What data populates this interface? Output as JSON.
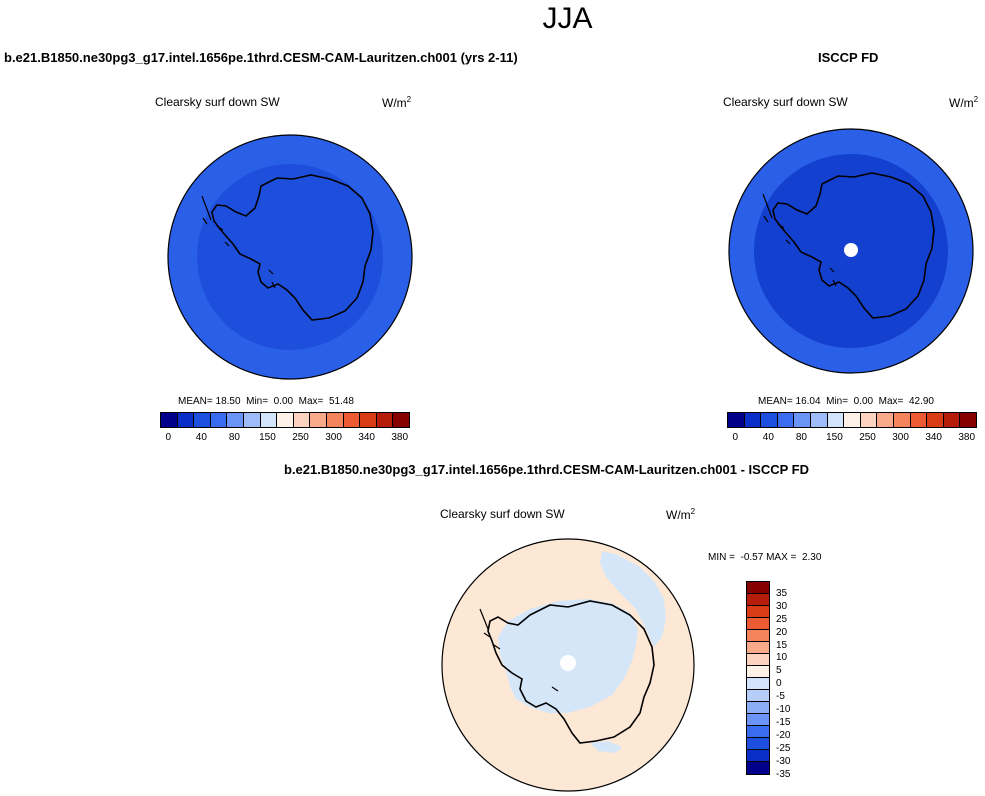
{
  "figure": {
    "season": "JJA"
  },
  "panels": [
    {
      "id": "model",
      "case_title": "b.e21.B1850.ne30pg3_g17.intel.1656pe.1thrd.CESM-CAM-Lauritzen.ch001 (yrs 2-11)",
      "variable": "Clearsky surf down SW",
      "units": "W/m",
      "units_exp": "2",
      "stats": {
        "mean_label": "MEAN=",
        "mean": "18.50",
        "min_label": "Min=",
        "min": "0.00",
        "max_label": "Max=",
        "max": "51.48"
      }
    },
    {
      "id": "obs",
      "case_title": "ISCCP FD",
      "variable": "Clearsky surf down SW",
      "units": "W/m",
      "units_exp": "2",
      "stats": {
        "mean_label": "MEAN=",
        "mean": "16.04",
        "min_label": "Min=",
        "min": "0.00",
        "max_label": "Max=",
        "max": "42.90"
      }
    },
    {
      "id": "diff",
      "case_title": "b.e21.B1850.ne30pg3_g17.intel.1656pe.1thrd.CESM-CAM-Lauritzen.ch001 - ISCCP FD",
      "variable": "Clearsky surf down SW",
      "units": "W/m",
      "units_exp": "2",
      "stats": {
        "min_label": "MIN =",
        "min": "-0.57",
        "max_label": "MAX =",
        "max": "2.30"
      }
    }
  ],
  "colorbars": {
    "absolute": {
      "colors": [
        "#00008b",
        "#0a2fc8",
        "#1e50e0",
        "#3a6cf0",
        "#6a94f5",
        "#9ebcf8",
        "#d2e3fb",
        "#fdf1e8",
        "#fbd3be",
        "#f9aa8a",
        "#f5845c",
        "#ed5b34",
        "#d93b17",
        "#b51d0a",
        "#850000"
      ],
      "labels": [
        "0",
        "40",
        "80",
        "150",
        "250",
        "300",
        "340",
        "380"
      ]
    },
    "difference": {
      "colors": [
        "#850000",
        "#b51d0a",
        "#d93b17",
        "#ed5b34",
        "#f5845c",
        "#f9aa8a",
        "#fbd3be",
        "#fdf1e8",
        "#d2e3fb",
        "#b6cef9",
        "#8caef6",
        "#6a94f5",
        "#3a6cf0",
        "#1e50e0",
        "#0a2fc8",
        "#00008b"
      ],
      "labels": [
        "35",
        "30",
        "25",
        "20",
        "15",
        "10",
        "5",
        "0",
        "-5",
        "-10",
        "-15",
        "-20",
        "-25",
        "-30",
        "-35"
      ]
    }
  },
  "map_colors": {
    "model_outer": "#2a5fe8",
    "model_inner": "#1e4fdc",
    "obs_outer": "#2a5fe8",
    "obs_inner": "#1440cf",
    "diff_background": "#fde8d6",
    "diff_negative": "#d6e6f9",
    "missing": "#ffffff"
  }
}
